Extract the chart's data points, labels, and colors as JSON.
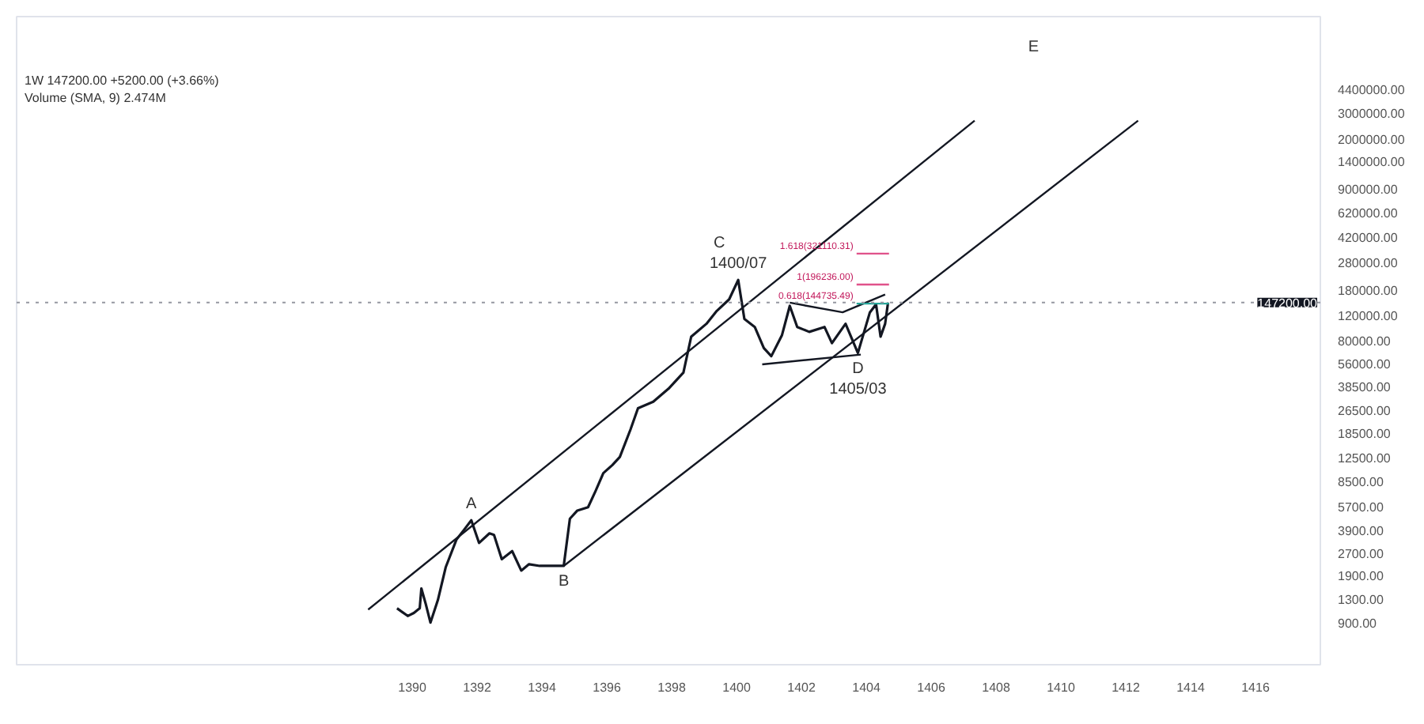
{
  "chart_data": {
    "type": "line",
    "log": "y",
    "grid": false,
    "marker": "none",
    "line_style": "solid",
    "xlim": [
      1377.8,
      1418
    ],
    "ylim": [
      460,
      14000000
    ],
    "xticks": [
      1390,
      1392,
      1394,
      1396,
      1398,
      1400,
      1402,
      1404,
      1406,
      1408,
      1410,
      1412,
      1414,
      1416
    ],
    "yticks": [
      {
        "value": 900,
        "label": "900.00"
      },
      {
        "value": 1300,
        "label": "1300.00"
      },
      {
        "value": 1900,
        "label": "1900.00"
      },
      {
        "value": 2700,
        "label": "2700.00"
      },
      {
        "value": 3900,
        "label": "3900.00"
      },
      {
        "value": 5700,
        "label": "5700.00"
      },
      {
        "value": 8500,
        "label": "8500.00"
      },
      {
        "value": 12500,
        "label": "12500.00"
      },
      {
        "value": 18500,
        "label": "18500.00"
      },
      {
        "value": 26500,
        "label": "26500.00"
      },
      {
        "value": 38500,
        "label": "38500.00"
      },
      {
        "value": 56000,
        "label": "56000.00"
      },
      {
        "value": 80000,
        "label": "80000.00"
      },
      {
        "value": 120000,
        "label": "120000.00"
      },
      {
        "value": 180000,
        "label": "180000.00"
      },
      {
        "value": 280000,
        "label": "280000.00"
      },
      {
        "value": 420000,
        "label": "420000.00"
      },
      {
        "value": 620000,
        "label": "620000.00"
      },
      {
        "value": 900000,
        "label": "900000.00"
      },
      {
        "value": 1400000,
        "label": "1400000.00"
      },
      {
        "value": 2000000,
        "label": "2000000.00"
      },
      {
        "value": 3000000,
        "label": "3000000.00"
      },
      {
        "value": 4400000,
        "label": "4400000.00"
      }
    ],
    "series": [
      {
        "color": "#131722",
        "x": [
          1389.53,
          1389.86,
          1390.05,
          1390.23,
          1390.28,
          1390.42,
          1390.56,
          1390.79,
          1391.03,
          1391.36,
          1391.59,
          1391.82,
          1392.06,
          1392.38,
          1392.52,
          1392.76,
          1393.08,
          1393.36,
          1393.6,
          1393.93,
          1394.3,
          1394.67,
          1394.86,
          1395.09,
          1395.42,
          1395.65,
          1395.89,
          1396.17,
          1396.4,
          1396.73,
          1396.96,
          1397.43,
          1397.9,
          1398.36,
          1398.6,
          1399.07,
          1399.39,
          1399.77,
          1400.05,
          1400.24,
          1400.56,
          1400.84,
          1401.07,
          1401.4,
          1401.64,
          1401.87,
          1402.24,
          1402.71,
          1402.94,
          1403.36,
          1403.74,
          1404.11,
          1404.3,
          1404.44,
          1404.58,
          1404.67
        ],
        "values": [
          1130,
          1000,
          1050,
          1130,
          1550,
          1200,
          900,
          1290,
          2170,
          3370,
          3930,
          4590,
          3200,
          3730,
          3640,
          2470,
          2810,
          2060,
          2280,
          2220,
          2220,
          2220,
          4710,
          5360,
          5650,
          7310,
          9720,
          11070,
          12590,
          19540,
          27350,
          30340,
          37320,
          48310,
          85500,
          105000,
          129000,
          155000,
          211000,
          113500,
          99800,
          71300,
          62700,
          87700,
          139700,
          99800,
          92300,
          99800,
          77100,
          105000,
          65900,
          126000,
          143200,
          85500,
          105000,
          147200
        ]
      },
      {
        "color": "#131722",
        "x": [
          1388.64,
          1407.34
        ],
        "values": [
          1107,
          2670000
        ]
      },
      {
        "color": "#131722",
        "x": [
          1394.67,
          1412.38
        ],
        "values": [
          2220,
          2670000
        ]
      },
      {
        "color": "#131722",
        "x": [
          1400.79,
          1403.83
        ],
        "values": [
          55000,
          64300
        ]
      },
      {
        "color": "#131722",
        "x": [
          1401.64,
          1403.27,
          1404.58
        ],
        "values": [
          147000,
          126000,
          167500
        ]
      },
      {
        "color": "#e0528a",
        "x": [
          1403.7,
          1404.7
        ],
        "values": [
          321110.31,
          321110.31
        ]
      },
      {
        "color": "#e0528a",
        "x": [
          1403.7,
          1404.7
        ],
        "values": [
          196236.0,
          196236.0
        ]
      },
      {
        "color": "#26a69a",
        "x": [
          1403.7,
          1404.7
        ],
        "values": [
          144735.49,
          144735.49
        ]
      }
    ],
    "ref_lines": [
      {
        "axis": "y",
        "value": 147200,
        "label": "147200.00",
        "color": "#9598a1",
        "line_style": "dotted"
      }
    ],
    "annotations": [
      "1W  147200.00  +5200.00 (+3.66%)",
      "Volume (SMA, 9) 2.474M",
      {
        "text": "A",
        "x": 1391.82,
        "y": 4590
      },
      {
        "text": "B",
        "x": 1394.67,
        "y": 2220
      },
      {
        "text": "1400/07",
        "x": 1400.05,
        "y": 211000
      },
      {
        "text": "C",
        "x": 1400.05,
        "y": 211000
      },
      {
        "text": "D",
        "x": 1403.74,
        "y": 65900
      },
      {
        "text": "1405/03",
        "x": 1403.74,
        "y": 65900
      },
      "E",
      {
        "text": "1.618(321110.31)",
        "x": 1403.6,
        "y": 321110.31
      },
      {
        "text": "1(196236.00)",
        "x": 1403.6,
        "y": 196236.0
      },
      {
        "text": "0.618(144735.49)",
        "x": 1403.6,
        "y": 144735.49
      }
    ]
  }
}
